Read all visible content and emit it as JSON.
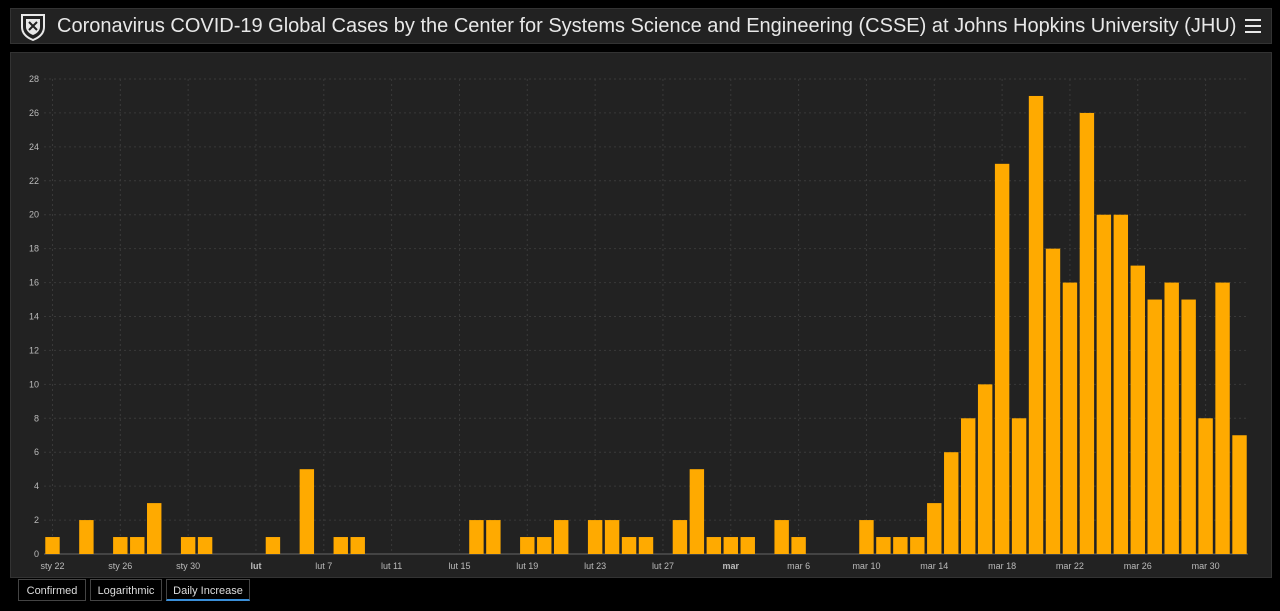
{
  "header": {
    "title": "Coronavirus COVID-19 Global Cases by the Center for Systems Science and Engineering (CSSE) at Johns Hopkins University (JHU)"
  },
  "tabs": [
    {
      "label": "Confirmed"
    },
    {
      "label": "Logarithmic"
    },
    {
      "label": "Daily Increase",
      "active": true
    }
  ],
  "colors": {
    "bar": "#ffaa00",
    "background": "#222222",
    "grid": "#3a3a3a",
    "text": "#bbbbbb"
  },
  "chart_data": {
    "type": "bar",
    "ylim": [
      0,
      28
    ],
    "yticks": [
      0,
      2,
      4,
      6,
      8,
      10,
      12,
      14,
      16,
      18,
      20,
      22,
      24,
      26,
      28
    ],
    "grid": true,
    "xlabel": "",
    "ylabel": "",
    "x_tick_labels": [
      {
        "index": 0,
        "label": "sty 22"
      },
      {
        "index": 4,
        "label": "sty 26"
      },
      {
        "index": 8,
        "label": "sty 30"
      },
      {
        "index": 12,
        "label": "lut",
        "bold": true
      },
      {
        "index": 16,
        "label": "lut 7"
      },
      {
        "index": 20,
        "label": "lut 11"
      },
      {
        "index": 24,
        "label": "lut 15"
      },
      {
        "index": 28,
        "label": "lut 19"
      },
      {
        "index": 32,
        "label": "lut 23"
      },
      {
        "index": 36,
        "label": "lut 27"
      },
      {
        "index": 40,
        "label": "mar",
        "bold": true
      },
      {
        "index": 44,
        "label": "mar 6"
      },
      {
        "index": 48,
        "label": "mar 10"
      },
      {
        "index": 52,
        "label": "mar 14"
      },
      {
        "index": 56,
        "label": "mar 18"
      },
      {
        "index": 60,
        "label": "mar 22"
      },
      {
        "index": 64,
        "label": "mar 26"
      },
      {
        "index": 68,
        "label": "mar 30"
      }
    ],
    "values": [
      1,
      0,
      2,
      0,
      1,
      1,
      3,
      0,
      1,
      1,
      0,
      0,
      0,
      1,
      0,
      5,
      0,
      1,
      1,
      0,
      0,
      0,
      0,
      0,
      0,
      2,
      2,
      0,
      1,
      1,
      2,
      0,
      2,
      2,
      1,
      1,
      0,
      2,
      5,
      1,
      1,
      1,
      0,
      2,
      1,
      0,
      0,
      0,
      2,
      1,
      1,
      1,
      3,
      6,
      8,
      10,
      23,
      8,
      27,
      18,
      16,
      26,
      20,
      20,
      17,
      15,
      16,
      15,
      8,
      16,
      7
    ]
  }
}
